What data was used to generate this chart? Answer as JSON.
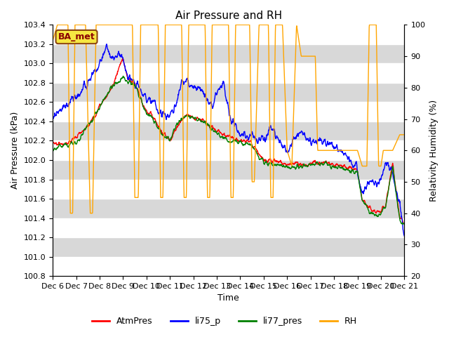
{
  "title": "Air Pressure and RH",
  "xlabel": "Time",
  "ylabel_left": "Air Pressure (kPa)",
  "ylabel_right": "Relativity Humidity (%)",
  "ylim_left": [
    100.8,
    103.4
  ],
  "ylim_right": [
    20,
    100
  ],
  "yticks_left": [
    100.8,
    101.0,
    101.2,
    101.4,
    101.6,
    101.8,
    102.0,
    102.2,
    102.4,
    102.6,
    102.8,
    103.0,
    103.2,
    103.4
  ],
  "yticks_right": [
    20,
    30,
    40,
    50,
    60,
    70,
    80,
    90,
    100
  ],
  "xtick_labels": [
    "Dec 6",
    "Dec 7",
    "Dec 8",
    "Dec 9",
    "Dec 10",
    "Dec 11",
    "Dec 12",
    "Dec 13",
    "Dec 14",
    "Dec 15",
    "Dec 16",
    "Dec 17",
    "Dec 18",
    "Dec 19",
    "Dec 20",
    "Dec 21"
  ],
  "legend_labels": [
    "AtmPres",
    "li75_p",
    "li77_pres",
    "RH"
  ],
  "legend_colors": [
    "red",
    "blue",
    "green",
    "orange"
  ],
  "station_label": "BA_met",
  "title_fontsize": 11,
  "axis_fontsize": 9,
  "tick_fontsize": 8,
  "legend_fontsize": 9,
  "line_width": 1.0,
  "fig_width": 6.4,
  "fig_height": 4.8,
  "dpi": 100
}
